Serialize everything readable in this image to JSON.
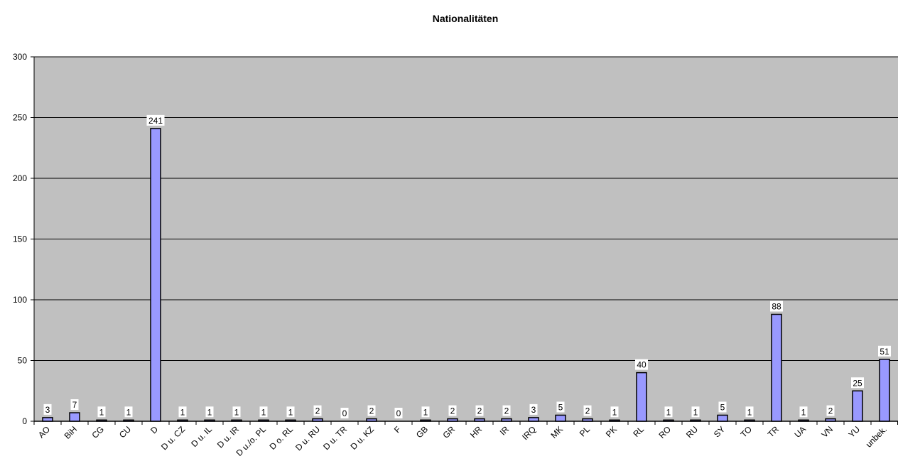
{
  "chart_data": {
    "type": "bar",
    "title": "Nationalitäten",
    "xlabel": "",
    "ylabel": "",
    "ylim": [
      0,
      300
    ],
    "yticks": [
      0,
      50,
      100,
      150,
      200,
      250,
      300
    ],
    "grid": true,
    "legend": "none",
    "colors": {
      "plot_background": "#c0c0c0",
      "bar_fill": "#9999ff",
      "bar_stroke": "#000000",
      "gridline": "#000000"
    },
    "categories": [
      "AO",
      "BiH",
      "CG",
      "CU",
      "D",
      "D u. CZ",
      "D u. IL",
      "D u. IR",
      "D u./o. PL",
      "D o. RL",
      "D u. RU",
      "D u. TR",
      "D u. KZ",
      "F",
      "GB",
      "GR",
      "HR",
      "IR",
      "IRQ",
      "MK",
      "PL",
      "PK",
      "RL",
      "RO",
      "RU",
      "SY",
      "TO",
      "TR",
      "UA",
      "VN",
      "YU",
      "unbek."
    ],
    "values": [
      3,
      7,
      1,
      1,
      241,
      1,
      1,
      1,
      1,
      1,
      2,
      0,
      2,
      0,
      1,
      2,
      2,
      2,
      3,
      5,
      2,
      1,
      40,
      1,
      1,
      5,
      1,
      88,
      1,
      2,
      25,
      51
    ]
  }
}
